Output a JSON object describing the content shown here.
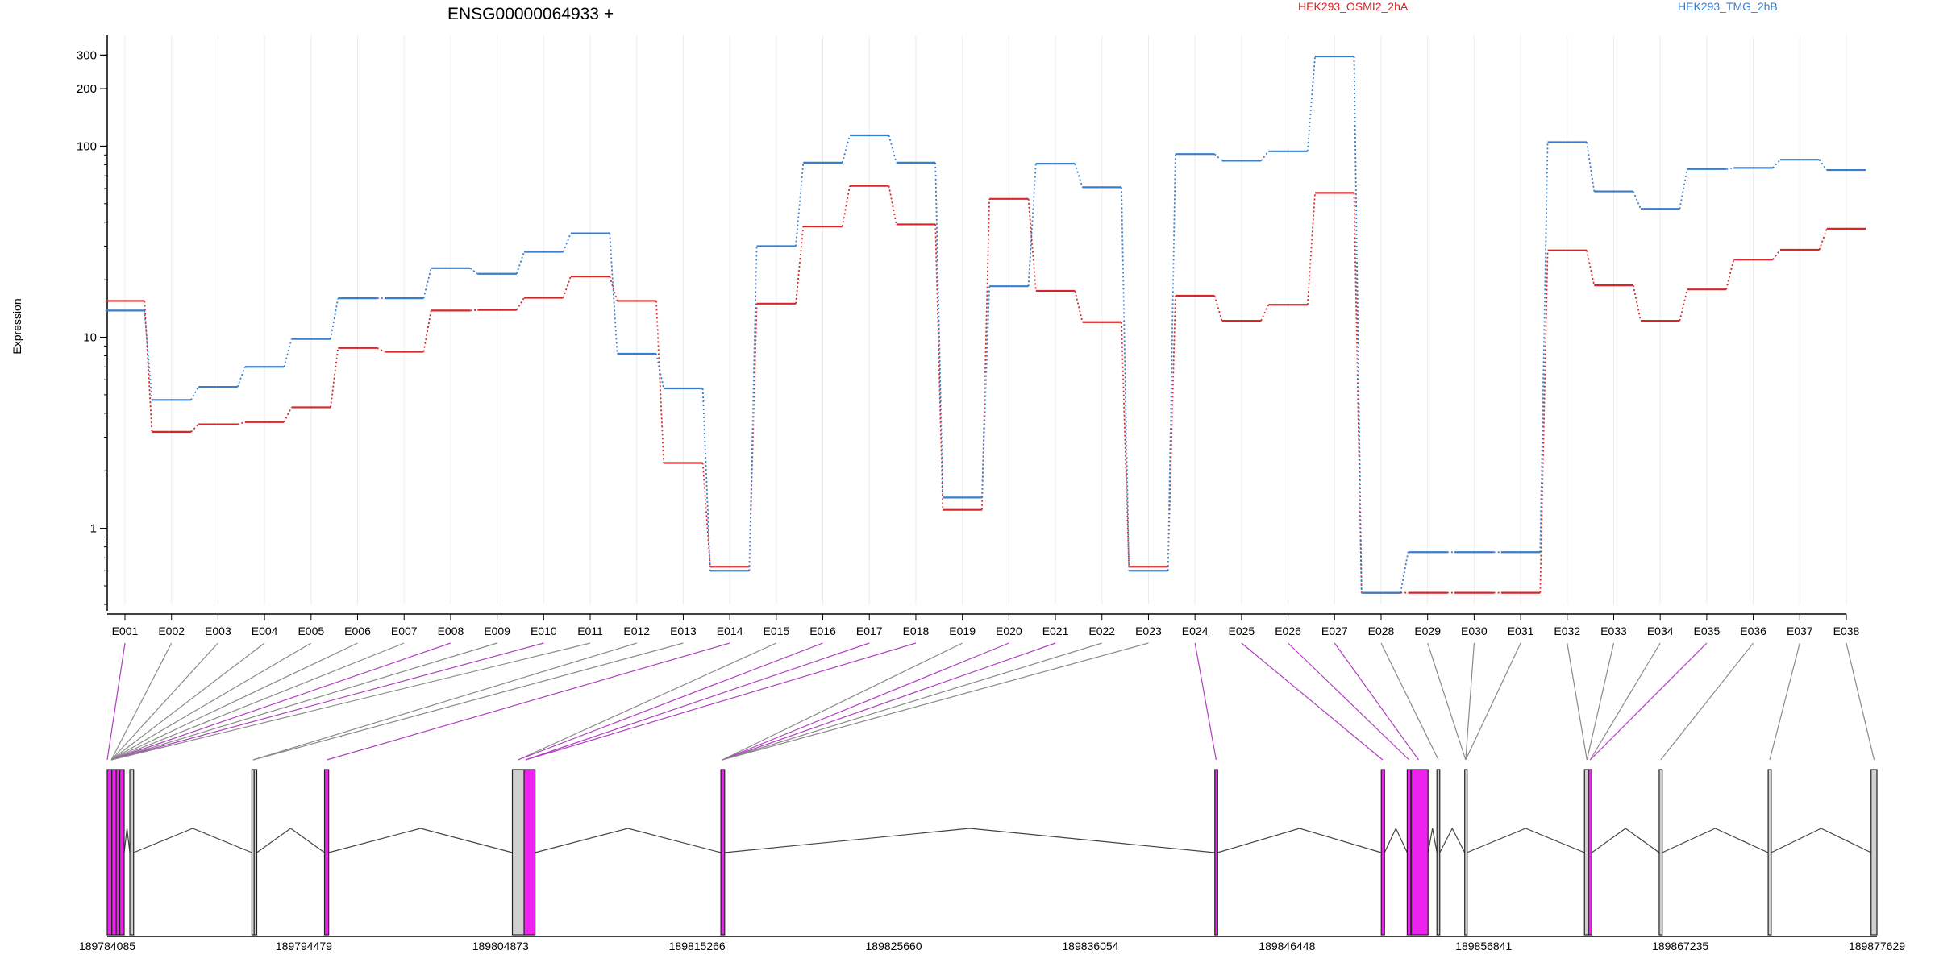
{
  "chart_data": {
    "type": "line",
    "title": "ENSG00000064933 +",
    "ylabel": "Expression",
    "y_scale": "log",
    "ylim": [
      0.4,
      380
    ],
    "y_ticks": [
      1,
      10,
      100,
      200,
      300
    ],
    "categories": [
      "E001",
      "E002",
      "E003",
      "E004",
      "E005",
      "E006",
      "E007",
      "E008",
      "E009",
      "E010",
      "E011",
      "E012",
      "E013",
      "E014",
      "E015",
      "E016",
      "E017",
      "E018",
      "E019",
      "E020",
      "E021",
      "E022",
      "E023",
      "E024",
      "E025",
      "E026",
      "E027",
      "E028",
      "E029",
      "E030",
      "E031",
      "E032",
      "E033",
      "E034",
      "E035",
      "E036",
      "E037",
      "E038"
    ],
    "series": [
      {
        "name": "HEK293_OSMI2_2hA",
        "color": "#d62728",
        "values": [
          15.5,
          3.2,
          3.5,
          3.6,
          4.3,
          8.8,
          8.4,
          13.8,
          13.9,
          16.1,
          20.8,
          15.5,
          2.2,
          0.63,
          15.0,
          38.0,
          62.0,
          39.0,
          1.25,
          53.0,
          17.5,
          12.0,
          0.63,
          16.5,
          12.2,
          14.8,
          57.0,
          0.46,
          0.46,
          0.46,
          0.46,
          28.5,
          18.7,
          12.2,
          17.8,
          25.5,
          28.7,
          37.0
        ]
      },
      {
        "name": "HEK293_TMG_2hB",
        "color": "#3a7dc9",
        "values": [
          13.8,
          4.7,
          5.5,
          7.0,
          9.8,
          16.0,
          16.0,
          23.0,
          21.5,
          28.0,
          35.0,
          8.2,
          5.4,
          0.6,
          30.0,
          82.0,
          114.0,
          82.0,
          1.45,
          18.5,
          81.0,
          61.0,
          0.6,
          91.0,
          84.0,
          94.0,
          295.0,
          0.46,
          0.75,
          0.75,
          0.75,
          105.0,
          58.0,
          47.0,
          76.0,
          77.0,
          85.0,
          75.0
        ]
      }
    ],
    "legend": [
      "HEK293_OSMI2_2hA",
      "HEK293_TMG_2hB"
    ],
    "grid": "vertical",
    "genome": {
      "coord_labels": [
        "189784085",
        "189794479",
        "189804873",
        "189815266",
        "189825660",
        "189836054",
        "189846448",
        "189856841",
        "189867235",
        "189877629"
      ],
      "coord_range": [
        189784085,
        189877629
      ],
      "exon_colors": {
        "significant": "#ee22ee",
        "normal": "#d0d0d0"
      },
      "exons": [
        {
          "start": 189784085,
          "end": 189784330,
          "sig": true
        },
        {
          "start": 189784330,
          "end": 189784560,
          "sig": true
        },
        {
          "start": 189784560,
          "end": 189784750,
          "sig": true
        },
        {
          "start": 189784750,
          "end": 189784980,
          "sig": true
        },
        {
          "start": 189785280,
          "end": 189785480,
          "sig": false
        },
        {
          "start": 189791730,
          "end": 189791850,
          "sig": false
        },
        {
          "start": 189791850,
          "end": 189791990,
          "sig": false
        },
        {
          "start": 189795570,
          "end": 189795790,
          "sig": true
        },
        {
          "start": 189805500,
          "end": 189806120,
          "sig": false
        },
        {
          "start": 189806120,
          "end": 189806700,
          "sig": true
        },
        {
          "start": 189816520,
          "end": 189816720,
          "sig": true
        },
        {
          "start": 189842630,
          "end": 189842780,
          "sig": true
        },
        {
          "start": 189851430,
          "end": 189851600,
          "sig": true
        },
        {
          "start": 189852800,
          "end": 189852980,
          "sig": true
        },
        {
          "start": 189853020,
          "end": 189853900,
          "sig": true
        },
        {
          "start": 189854370,
          "end": 189854520,
          "sig": false
        },
        {
          "start": 189855840,
          "end": 189855950,
          "sig": false
        },
        {
          "start": 189862170,
          "end": 189862380,
          "sig": false
        },
        {
          "start": 189862380,
          "end": 189862560,
          "sig": true
        },
        {
          "start": 189866120,
          "end": 189866280,
          "sig": false
        },
        {
          "start": 189871880,
          "end": 189872040,
          "sig": false
        },
        {
          "start": 189877320,
          "end": 189877629,
          "sig": false
        }
      ],
      "mapping": [
        {
          "from": "E001",
          "to": 189784085,
          "sig": true
        },
        {
          "from": "E002",
          "to": 189784300,
          "sig": false
        },
        {
          "from": "E003",
          "to": 189784300,
          "sig": false
        },
        {
          "from": "E004",
          "to": 189784300,
          "sig": false
        },
        {
          "from": "E005",
          "to": 189784300,
          "sig": false
        },
        {
          "from": "E006",
          "to": 189784300,
          "sig": false
        },
        {
          "from": "E007",
          "to": 189784300,
          "sig": false
        },
        {
          "from": "E008",
          "to": 189784300,
          "sig": true
        },
        {
          "from": "E009",
          "to": 189784300,
          "sig": false
        },
        {
          "from": "E010",
          "to": 189784300,
          "sig": true
        },
        {
          "from": "E011",
          "to": 189784300,
          "sig": false
        },
        {
          "from": "E012",
          "to": 189791800,
          "sig": false
        },
        {
          "from": "E013",
          "to": 189791800,
          "sig": false
        },
        {
          "from": "E014",
          "to": 189795700,
          "sig": true
        },
        {
          "from": "E015",
          "to": 189805800,
          "sig": false
        },
        {
          "from": "E016",
          "to": 189805800,
          "sig": true
        },
        {
          "from": "E017",
          "to": 189806200,
          "sig": true
        },
        {
          "from": "E018",
          "to": 189806200,
          "sig": true
        },
        {
          "from": "E019",
          "to": 189816600,
          "sig": false
        },
        {
          "from": "E020",
          "to": 189816600,
          "sig": true
        },
        {
          "from": "E021",
          "to": 189816600,
          "sig": true
        },
        {
          "from": "E022",
          "to": 189816600,
          "sig": false
        },
        {
          "from": "E023",
          "to": 189816600,
          "sig": false
        },
        {
          "from": "E024",
          "to": 189842700,
          "sig": true
        },
        {
          "from": "E025",
          "to": 189851500,
          "sig": true
        },
        {
          "from": "E026",
          "to": 189852900,
          "sig": true
        },
        {
          "from": "E027",
          "to": 189853400,
          "sig": true
        },
        {
          "from": "E028",
          "to": 189854450,
          "sig": false
        },
        {
          "from": "E029",
          "to": 189855890,
          "sig": false
        },
        {
          "from": "E030",
          "to": 189855890,
          "sig": false
        },
        {
          "from": "E031",
          "to": 189855890,
          "sig": false
        },
        {
          "from": "E032",
          "to": 189862300,
          "sig": false
        },
        {
          "from": "E033",
          "to": 189862300,
          "sig": false
        },
        {
          "from": "E034",
          "to": 189862470,
          "sig": false
        },
        {
          "from": "E035",
          "to": 189862470,
          "sig": true
        },
        {
          "from": "E036",
          "to": 189866200,
          "sig": false
        },
        {
          "from": "E037",
          "to": 189871960,
          "sig": false
        },
        {
          "from": "E038",
          "to": 189877480,
          "sig": false
        }
      ]
    }
  }
}
